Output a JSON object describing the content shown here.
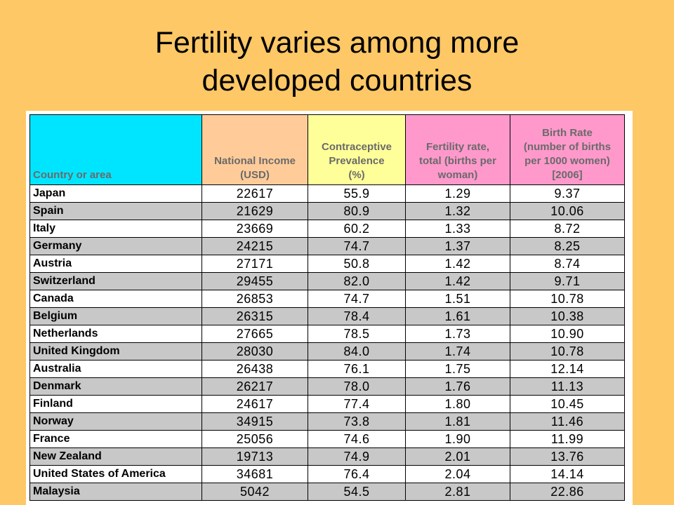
{
  "title": {
    "line1": "Fertility varies among more",
    "line2": "developed countries"
  },
  "colors": {
    "background": "#fdc865",
    "header_country": "#00e5ff",
    "header_income": "#ffcc99",
    "header_contraceptive": "#ffff99",
    "header_fertility": "#ff99cc",
    "header_birthrate": "#ff99cc",
    "row_alt": "#c8c8c8"
  },
  "table": {
    "headers": [
      [
        "Country or area"
      ],
      [
        "National Income",
        "(USD)"
      ],
      [
        "Contraceptive",
        "Prevalence",
        "(%)"
      ],
      [
        "Fertility rate,",
        "total (births per",
        "woman)"
      ],
      [
        "Birth Rate",
        "(number of births",
        "per 1000 women)",
        "[2006]"
      ]
    ],
    "rows": [
      [
        "Japan",
        "22617",
        "55.9",
        "1.29",
        "9.37"
      ],
      [
        "Spain",
        "21629",
        "80.9",
        "1.32",
        "10.06"
      ],
      [
        "Italy",
        "23669",
        "60.2",
        "1.33",
        "8.72"
      ],
      [
        "Germany",
        "24215",
        "74.7",
        "1.37",
        "8.25"
      ],
      [
        "Austria",
        "27171",
        "50.8",
        "1.42",
        "8.74"
      ],
      [
        "Switzerland",
        "29455",
        "82.0",
        "1.42",
        "9.71"
      ],
      [
        "Canada",
        "26853",
        "74.7",
        "1.51",
        "10.78"
      ],
      [
        "Belgium",
        "26315",
        "78.4",
        "1.61",
        "10.38"
      ],
      [
        "Netherlands",
        "27665",
        "78.5",
        "1.73",
        "10.90"
      ],
      [
        "United Kingdom",
        "28030",
        "84.0",
        "1.74",
        "10.78"
      ],
      [
        "Australia",
        "26438",
        "76.1",
        "1.75",
        "12.14"
      ],
      [
        "Denmark",
        "26217",
        "78.0",
        "1.76",
        "11.13"
      ],
      [
        "Finland",
        "24617",
        "77.4",
        "1.80",
        "10.45"
      ],
      [
        "Norway",
        "34915",
        "73.8",
        "1.81",
        "11.46"
      ],
      [
        "France",
        "25056",
        "74.6",
        "1.90",
        "11.99"
      ],
      [
        "New Zealand",
        "19713",
        "74.9",
        "2.01",
        "13.76"
      ],
      [
        "United States of America",
        "34681",
        "76.4",
        "2.04",
        "14.14"
      ],
      [
        "Malaysia",
        "5042",
        "54.5",
        "2.81",
        "22.86"
      ]
    ]
  }
}
